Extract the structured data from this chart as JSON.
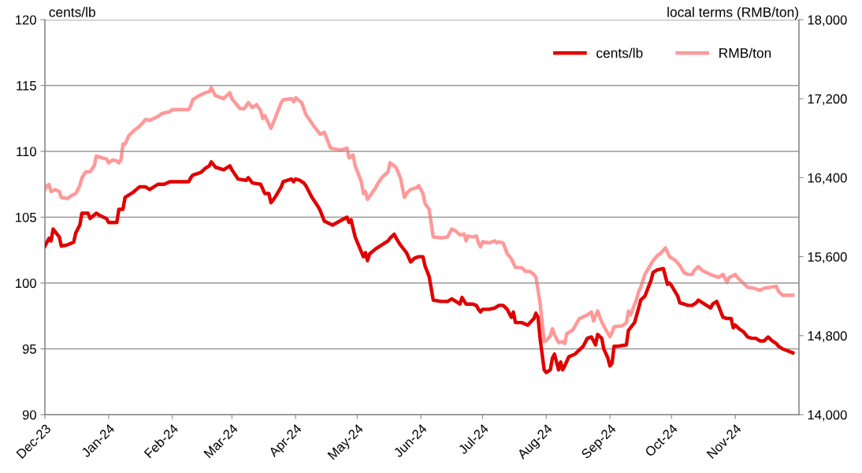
{
  "chart_data": {
    "type": "line",
    "ylabel": "cents/lb",
    "y2label": "local terms (RMB/ton)",
    "xlim": [
      "2023-12-01",
      "2024-12-02"
    ],
    "xticks": [
      {
        "value": "2023-12-01",
        "label": "Dec-23"
      },
      {
        "value": "2024-01-01",
        "label": "Jan-24"
      },
      {
        "value": "2024-02-01",
        "label": "Feb-24"
      },
      {
        "value": "2024-03-01",
        "label": "Mar-24"
      },
      {
        "value": "2024-04-01",
        "label": "Apr-24"
      },
      {
        "value": "2024-05-01",
        "label": "May-24"
      },
      {
        "value": "2024-06-01",
        "label": "Jun-24"
      },
      {
        "value": "2024-07-01",
        "label": "Jul-24"
      },
      {
        "value": "2024-08-01",
        "label": "Aug-24"
      },
      {
        "value": "2024-09-01",
        "label": "Sep-24"
      },
      {
        "value": "2024-10-01",
        "label": "Oct-24"
      },
      {
        "value": "2024-11-01",
        "label": "Nov-24"
      }
    ],
    "ylim": [
      90,
      120
    ],
    "yticks": [
      90,
      95,
      100,
      105,
      110,
      115,
      120
    ],
    "y2lim": [
      14000,
      18000
    ],
    "y2ticks": [
      {
        "value": 14000,
        "label": "14,000"
      },
      {
        "value": 14800,
        "label": "14,800"
      },
      {
        "value": 15600,
        "label": "15,600"
      },
      {
        "value": 16400,
        "label": "16,400"
      },
      {
        "value": 17200,
        "label": "17,200"
      },
      {
        "value": 18000,
        "label": "18,000"
      }
    ],
    "grid": "y",
    "legend": "top right",
    "line_style": "solid",
    "marker": "none",
    "series": [
      {
        "name": "cents/lb",
        "color": "#e00000",
        "x": [
          "2023-12-01",
          "2023-12-03",
          "2023-12-04",
          "2023-12-05",
          "2023-12-08",
          "2023-12-09",
          "2023-12-12",
          "2023-12-15",
          "2023-12-16",
          "2023-12-18",
          "2023-12-19",
          "2023-12-22",
          "2023-12-23",
          "2023-12-26",
          "2023-12-28",
          "2023-12-31",
          "2024-01-01",
          "2024-01-03",
          "2024-01-05",
          "2024-01-06",
          "2024-01-08",
          "2024-01-09",
          "2024-01-11",
          "2024-01-13",
          "2024-01-16",
          "2024-01-19",
          "2024-01-21",
          "2024-01-25",
          "2024-01-28",
          "2024-01-31",
          "2024-02-01",
          "2024-02-09",
          "2024-02-10",
          "2024-02-11",
          "2024-02-15",
          "2024-02-17",
          "2024-02-19",
          "2024-02-20",
          "2024-02-21",
          "2024-02-22",
          "2024-02-26",
          "2024-02-29",
          "2024-03-01",
          "2024-03-04",
          "2024-03-08",
          "2024-03-09",
          "2024-03-11",
          "2024-03-15",
          "2024-03-17",
          "2024-03-19",
          "2024-03-20",
          "2024-03-22",
          "2024-03-25",
          "2024-03-26",
          "2024-03-30",
          "2024-03-31",
          "2024-04-01",
          "2024-04-03",
          "2024-04-05",
          "2024-04-06",
          "2024-04-09",
          "2024-04-12",
          "2024-04-13",
          "2024-04-15",
          "2024-04-19",
          "2024-04-26",
          "2024-04-27",
          "2024-04-28",
          "2024-04-30",
          "2024-05-04",
          "2024-05-05",
          "2024-05-06",
          "2024-05-07",
          "2024-05-10",
          "2024-05-13",
          "2024-05-16",
          "2024-05-17",
          "2024-05-19",
          "2024-05-20",
          "2024-05-22",
          "2024-05-25",
          "2024-05-27",
          "2024-05-29",
          "2024-05-31",
          "2024-06-02",
          "2024-06-03",
          "2024-06-05",
          "2024-06-07",
          "2024-06-11",
          "2024-06-14",
          "2024-06-16",
          "2024-06-17",
          "2024-06-20",
          "2024-06-21",
          "2024-06-23",
          "2024-06-26",
          "2024-06-28",
          "2024-06-29",
          "2024-06-30",
          "2024-07-01",
          "2024-07-04",
          "2024-07-07",
          "2024-07-09",
          "2024-07-11",
          "2024-07-13",
          "2024-07-15",
          "2024-07-16",
          "2024-07-17",
          "2024-07-20",
          "2024-07-23",
          "2024-07-26",
          "2024-07-27",
          "2024-07-28",
          "2024-07-29",
          "2024-07-31",
          "2024-08-01",
          "2024-08-03",
          "2024-08-04",
          "2024-08-05",
          "2024-08-07",
          "2024-08-08",
          "2024-08-09",
          "2024-08-10",
          "2024-08-12",
          "2024-08-15",
          "2024-08-19",
          "2024-08-21",
          "2024-08-23",
          "2024-08-25",
          "2024-08-26",
          "2024-08-28",
          "2024-08-29",
          "2024-08-31",
          "2024-09-01",
          "2024-09-02",
          "2024-09-03",
          "2024-09-05",
          "2024-09-09",
          "2024-09-10",
          "2024-09-13",
          "2024-09-15",
          "2024-09-16",
          "2024-09-18",
          "2024-09-21",
          "2024-09-22",
          "2024-09-24",
          "2024-09-27",
          "2024-09-29",
          "2024-09-30",
          "2024-10-01",
          "2024-10-04",
          "2024-10-05",
          "2024-10-07",
          "2024-10-09",
          "2024-10-11",
          "2024-10-13",
          "2024-10-14",
          "2024-10-17",
          "2024-10-18",
          "2024-10-20",
          "2024-10-21",
          "2024-10-23",
          "2024-10-26",
          "2024-10-28",
          "2024-10-30",
          "2024-10-31",
          "2024-11-01",
          "2024-11-03",
          "2024-11-05",
          "2024-11-07",
          "2024-11-09",
          "2024-11-11",
          "2024-11-13",
          "2024-11-15",
          "2024-11-17",
          "2024-11-19",
          "2024-11-21",
          "2024-11-22",
          "2024-11-24",
          "2024-11-29"
        ],
        "values": [
          102.8,
          103.4,
          103.2,
          104.1,
          103.5,
          102.8,
          102.9,
          103.1,
          103.8,
          104.4,
          105.3,
          105.3,
          104.9,
          105.3,
          105.1,
          104.9,
          104.6,
          104.6,
          104.6,
          105.6,
          105.6,
          106.5,
          106.7,
          106.9,
          107.3,
          107.3,
          107.1,
          107.5,
          107.5,
          107.7,
          107.7,
          107.7,
          108.0,
          108.2,
          108.4,
          108.7,
          108.9,
          109.2,
          109.0,
          108.8,
          108.6,
          108.9,
          108.6,
          107.9,
          107.8,
          108.0,
          107.6,
          107.5,
          106.8,
          106.8,
          106.1,
          106.5,
          107.3,
          107.7,
          107.9,
          107.7,
          107.9,
          107.8,
          107.6,
          107.4,
          106.5,
          105.8,
          105.5,
          104.7,
          104.4,
          105.0,
          104.6,
          104.8,
          103.5,
          102.0,
          102.3,
          101.7,
          102.2,
          102.6,
          102.9,
          103.2,
          103.4,
          103.7,
          103.4,
          102.9,
          102.3,
          101.6,
          101.9,
          102.0,
          102.0,
          101.3,
          100.5,
          98.7,
          98.6,
          98.6,
          98.8,
          98.7,
          98.4,
          98.9,
          98.4,
          98.4,
          98.3,
          98.0,
          97.8,
          98.0,
          98.0,
          98.1,
          98.3,
          98.3,
          98.0,
          97.4,
          97.8,
          97.0,
          97.0,
          96.8,
          97.3,
          97.7,
          97.4,
          95.8,
          93.4,
          93.2,
          93.4,
          94.3,
          94.6,
          93.4,
          94.0,
          93.4,
          93.7,
          94.4,
          94.6,
          95.2,
          95.8,
          95.9,
          95.3,
          96.1,
          95.8,
          95.0,
          94.3,
          93.7,
          93.9,
          95.2,
          95.2,
          95.3,
          96.4,
          97.0,
          98.1,
          98.7,
          99.0,
          100.2,
          100.8,
          101.0,
          101.1,
          99.9,
          100.0,
          99.8,
          99.0,
          98.5,
          98.4,
          98.3,
          98.3,
          98.5,
          98.7,
          98.4,
          98.3,
          98.1,
          98.4,
          98.6,
          97.4,
          97.3,
          97.3,
          96.6,
          96.8,
          96.5,
          96.3,
          95.9,
          95.8,
          95.8,
          95.6,
          95.6,
          95.9,
          95.6,
          95.4,
          95.2,
          95.0,
          94.7
        ]
      },
      {
        "name": "RMB/ton",
        "color": "#ff9999",
        "axis": "y2",
        "x": [
          "2023-12-01",
          "2023-12-02",
          "2023-12-03",
          "2023-12-04",
          "2023-12-06",
          "2023-12-08",
          "2023-12-09",
          "2023-12-12",
          "2023-12-14",
          "2023-12-16",
          "2023-12-18",
          "2023-12-19",
          "2023-12-21",
          "2023-12-23",
          "2023-12-25",
          "2023-12-26",
          "2023-12-29",
          "2023-12-31",
          "2024-01-01",
          "2024-01-03",
          "2024-01-05",
          "2024-01-06",
          "2024-01-07",
          "2024-01-08",
          "2024-01-09",
          "2024-01-11",
          "2024-01-13",
          "2024-01-16",
          "2024-01-19",
          "2024-01-21",
          "2024-01-25",
          "2024-01-27",
          "2024-01-31",
          "2024-02-01",
          "2024-02-09",
          "2024-02-10",
          "2024-02-11",
          "2024-02-14",
          "2024-02-17",
          "2024-02-19",
          "2024-02-20",
          "2024-02-22",
          "2024-02-26",
          "2024-02-29",
          "2024-03-01",
          "2024-03-03",
          "2024-03-05",
          "2024-03-07",
          "2024-03-09",
          "2024-03-11",
          "2024-03-13",
          "2024-03-15",
          "2024-03-16",
          "2024-03-17",
          "2024-03-20",
          "2024-03-22",
          "2024-03-25",
          "2024-03-26",
          "2024-03-30",
          "2024-03-31",
          "2024-04-01",
          "2024-04-04",
          "2024-04-06",
          "2024-04-10",
          "2024-04-13",
          "2024-04-15",
          "2024-04-18",
          "2024-04-23",
          "2024-04-26",
          "2024-04-27",
          "2024-04-29",
          "2024-04-30",
          "2024-05-03",
          "2024-05-04",
          "2024-05-05",
          "2024-05-06",
          "2024-05-08",
          "2024-05-10",
          "2024-05-11",
          "2024-05-13",
          "2024-05-16",
          "2024-05-17",
          "2024-05-19",
          "2024-05-20",
          "2024-05-22",
          "2024-05-24",
          "2024-05-25",
          "2024-05-27",
          "2024-05-30",
          "2024-05-31",
          "2024-06-02",
          "2024-06-03",
          "2024-06-05",
          "2024-06-07",
          "2024-06-11",
          "2024-06-14",
          "2024-06-16",
          "2024-06-18",
          "2024-06-20",
          "2024-06-22",
          "2024-06-23",
          "2024-06-24",
          "2024-06-26",
          "2024-06-28",
          "2024-06-29",
          "2024-06-30",
          "2024-07-01",
          "2024-07-04",
          "2024-07-07",
          "2024-07-08",
          "2024-07-09",
          "2024-07-11",
          "2024-07-13",
          "2024-07-15",
          "2024-07-17",
          "2024-07-20",
          "2024-07-22",
          "2024-07-24",
          "2024-07-26",
          "2024-07-27",
          "2024-07-29",
          "2024-07-31",
          "2024-08-01",
          "2024-08-03",
          "2024-08-04",
          "2024-08-05",
          "2024-08-07",
          "2024-08-09",
          "2024-08-10",
          "2024-08-11",
          "2024-08-14",
          "2024-08-17",
          "2024-08-21",
          "2024-08-23",
          "2024-08-24",
          "2024-08-26",
          "2024-08-28",
          "2024-08-30",
          "2024-09-01",
          "2024-09-02",
          "2024-09-03",
          "2024-09-07",
          "2024-09-09",
          "2024-09-10",
          "2024-09-11",
          "2024-09-14",
          "2024-09-15",
          "2024-09-16",
          "2024-09-18",
          "2024-09-22",
          "2024-09-24",
          "2024-09-26",
          "2024-09-28",
          "2024-09-30",
          "2024-10-03",
          "2024-10-05",
          "2024-10-07",
          "2024-10-09",
          "2024-10-11",
          "2024-10-12",
          "2024-10-14",
          "2024-10-16",
          "2024-10-17",
          "2024-10-21",
          "2024-10-24",
          "2024-10-26",
          "2024-10-28",
          "2024-10-29",
          "2024-11-01",
          "2024-11-02",
          "2024-11-04",
          "2024-11-07",
          "2024-11-10",
          "2024-11-13",
          "2024-11-15",
          "2024-11-18",
          "2024-11-21",
          "2024-11-22",
          "2024-11-24",
          "2024-11-29"
        ],
        "values": [
          16280,
          16320,
          16330,
          16260,
          16280,
          16260,
          16200,
          16190,
          16220,
          16240,
          16320,
          16400,
          16460,
          16460,
          16520,
          16620,
          16600,
          16590,
          16550,
          16580,
          16570,
          16550,
          16580,
          16740,
          16740,
          16830,
          16870,
          16920,
          16990,
          16980,
          17020,
          17050,
          17070,
          17090,
          17090,
          17130,
          17190,
          17230,
          17260,
          17270,
          17310,
          17230,
          17200,
          17260,
          17200,
          17150,
          17100,
          17100,
          17160,
          17110,
          17140,
          17080,
          17000,
          17030,
          16900,
          17000,
          17160,
          17190,
          17200,
          17170,
          17210,
          17160,
          17040,
          16920,
          16840,
          16860,
          16700,
          16680,
          16700,
          16600,
          16630,
          16520,
          16360,
          16240,
          16260,
          16180,
          16240,
          16300,
          16340,
          16400,
          16460,
          16550,
          16520,
          16500,
          16400,
          16200,
          16240,
          16280,
          16300,
          16320,
          16240,
          16140,
          16080,
          15800,
          15790,
          15800,
          15880,
          15860,
          15820,
          15830,
          15760,
          15810,
          15800,
          15810,
          15740,
          15700,
          15750,
          15740,
          15760,
          15740,
          15750,
          15740,
          15630,
          15580,
          15490,
          15490,
          15450,
          15450,
          15420,
          15390,
          15130,
          14740,
          14750,
          14800,
          14870,
          14810,
          14730,
          14740,
          14720,
          14820,
          14860,
          14970,
          15010,
          15040,
          14950,
          15050,
          14940,
          14860,
          14790,
          14830,
          14890,
          14900,
          14930,
          15050,
          15010,
          15170,
          15250,
          15290,
          15420,
          15560,
          15610,
          15640,
          15690,
          15600,
          15560,
          15510,
          15440,
          15420,
          15420,
          15460,
          15500,
          15460,
          15450,
          15410,
          15390,
          15420,
          15340,
          15390,
          15420,
          15390,
          15350,
          15290,
          15280,
          15260,
          15280,
          15290,
          15300,
          15250,
          15210,
          15210
        ]
      }
    ]
  }
}
